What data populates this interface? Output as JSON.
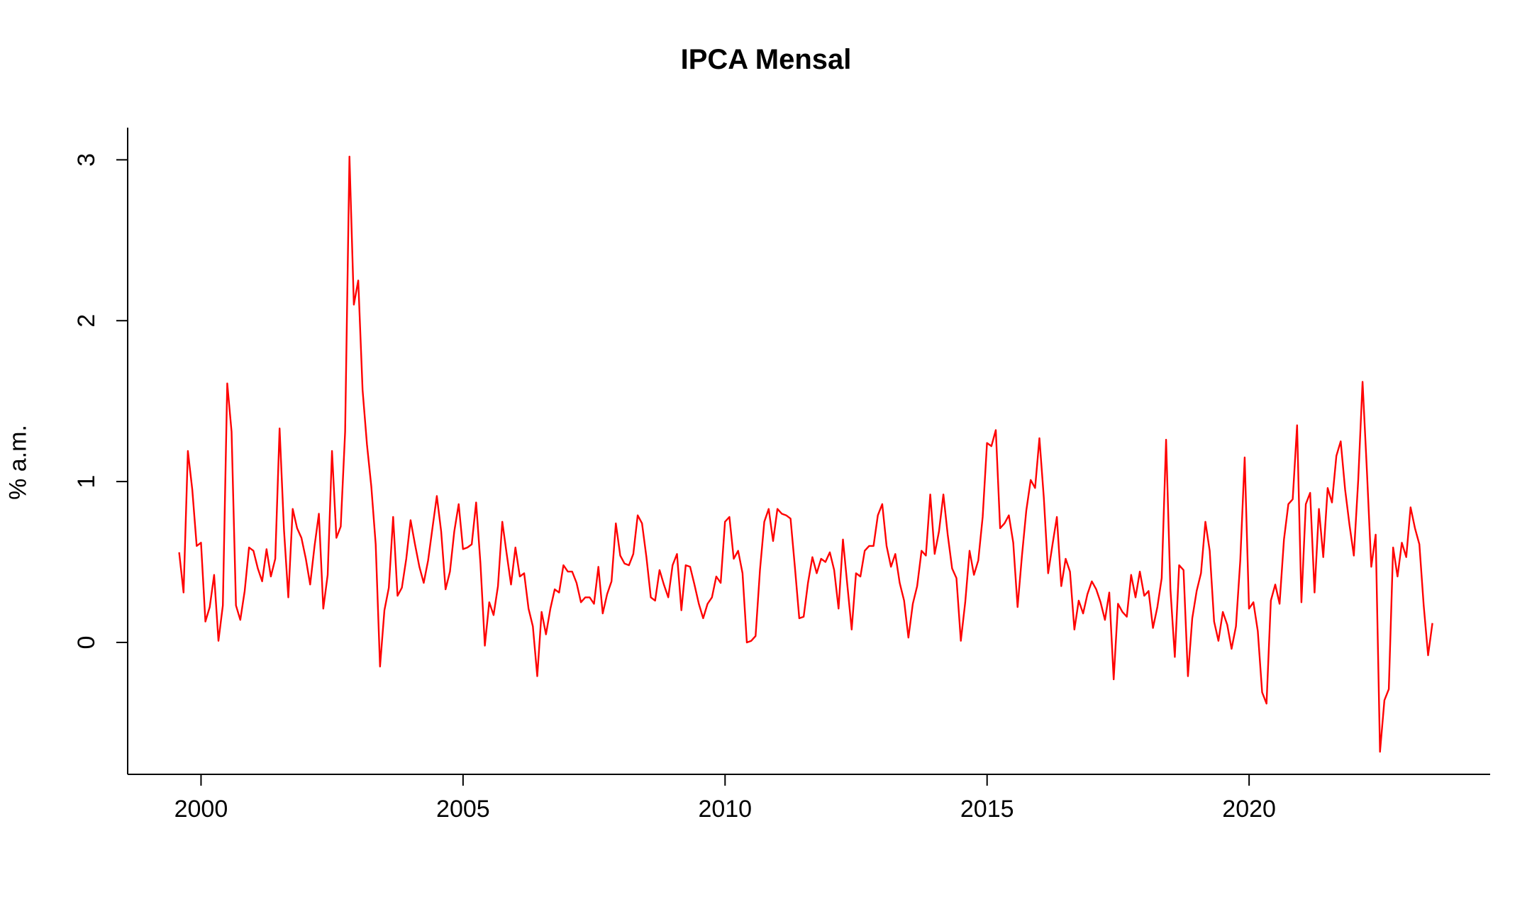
{
  "chart_data": {
    "type": "line",
    "title": "IPCA Mensal",
    "xlabel": "",
    "ylabel": "% a.m.",
    "xlim": [
      1998.6,
      2024.6
    ],
    "ylim": [
      -0.82,
      3.2
    ],
    "x_ticks": [
      2000,
      2005,
      2010,
      2015,
      2020
    ],
    "y_ticks": [
      0,
      1,
      2,
      3
    ],
    "grid": false,
    "legend": "none",
    "series_color": "#ff0000",
    "x_start": 1999.583,
    "x_step": 0.08333,
    "series": [
      {
        "values": [
          0.56,
          0.31,
          1.19,
          0.95,
          0.6,
          0.62,
          0.13,
          0.22,
          0.42,
          0.01,
          0.23,
          1.61,
          1.31,
          0.23,
          0.14,
          0.32,
          0.59,
          0.57,
          0.46,
          0.38,
          0.58,
          0.41,
          0.52,
          1.33,
          0.7,
          0.28,
          0.83,
          0.71,
          0.65,
          0.52,
          0.36,
          0.6,
          0.8,
          0.21,
          0.42,
          1.19,
          0.65,
          0.72,
          1.31,
          3.02,
          2.1,
          2.25,
          1.57,
          1.23,
          0.97,
          0.61,
          -0.15,
          0.2,
          0.34,
          0.78,
          0.29,
          0.34,
          0.52,
          0.76,
          0.61,
          0.47,
          0.37,
          0.51,
          0.71,
          0.91,
          0.69,
          0.33,
          0.44,
          0.69,
          0.86,
          0.58,
          0.59,
          0.61,
          0.87,
          0.49,
          -0.02,
          0.25,
          0.17,
          0.35,
          0.75,
          0.55,
          0.36,
          0.59,
          0.41,
          0.43,
          0.21,
          0.1,
          -0.21,
          0.19,
          0.05,
          0.21,
          0.33,
          0.31,
          0.48,
          0.44,
          0.44,
          0.37,
          0.25,
          0.28,
          0.28,
          0.24,
          0.47,
          0.18,
          0.3,
          0.38,
          0.74,
          0.54,
          0.49,
          0.48,
          0.55,
          0.79,
          0.74,
          0.53,
          0.28,
          0.26,
          0.45,
          0.36,
          0.28,
          0.48,
          0.55,
          0.2,
          0.48,
          0.47,
          0.36,
          0.24,
          0.15,
          0.24,
          0.28,
          0.41,
          0.37,
          0.75,
          0.78,
          0.52,
          0.57,
          0.43,
          0.0,
          0.01,
          0.04,
          0.45,
          0.75,
          0.83,
          0.63,
          0.83,
          0.8,
          0.79,
          0.77,
          0.47,
          0.15,
          0.16,
          0.37,
          0.53,
          0.43,
          0.52,
          0.5,
          0.56,
          0.45,
          0.21,
          0.64,
          0.36,
          0.08,
          0.43,
          0.41,
          0.57,
          0.6,
          0.6,
          0.79,
          0.86,
          0.6,
          0.47,
          0.55,
          0.37,
          0.26,
          0.03,
          0.24,
          0.35,
          0.57,
          0.54,
          0.92,
          0.55,
          0.69,
          0.92,
          0.67,
          0.46,
          0.4,
          0.01,
          0.25,
          0.57,
          0.42,
          0.51,
          0.78,
          1.24,
          1.22,
          1.32,
          0.71,
          0.74,
          0.79,
          0.62,
          0.22,
          0.54,
          0.82,
          1.01,
          0.96,
          1.27,
          0.9,
          0.43,
          0.61,
          0.78,
          0.35,
          0.52,
          0.44,
          0.08,
          0.26,
          0.18,
          0.3,
          0.38,
          0.33,
          0.25,
          0.14,
          0.31,
          -0.23,
          0.24,
          0.19,
          0.16,
          0.42,
          0.28,
          0.44,
          0.29,
          0.32,
          0.09,
          0.22,
          0.4,
          1.26,
          0.33,
          -0.09,
          0.48,
          0.45,
          -0.21,
          0.15,
          0.32,
          0.43,
          0.75,
          0.57,
          0.13,
          0.01,
          0.19,
          0.11,
          -0.04,
          0.1,
          0.51,
          1.15,
          0.21,
          0.25,
          0.07,
          -0.31,
          -0.38,
          0.26,
          0.36,
          0.24,
          0.64,
          0.86,
          0.89,
          1.35,
          0.25,
          0.86,
          0.93,
          0.31,
          0.83,
          0.53,
          0.96,
          0.87,
          1.16,
          1.25,
          0.95,
          0.73,
          0.54,
          1.01,
          1.62,
          1.06,
          0.47,
          0.67,
          -0.68,
          -0.36,
          -0.29,
          0.59,
          0.41,
          0.62,
          0.53,
          0.84,
          0.71,
          0.61,
          0.23,
          -0.08,
          0.12
        ]
      }
    ]
  }
}
